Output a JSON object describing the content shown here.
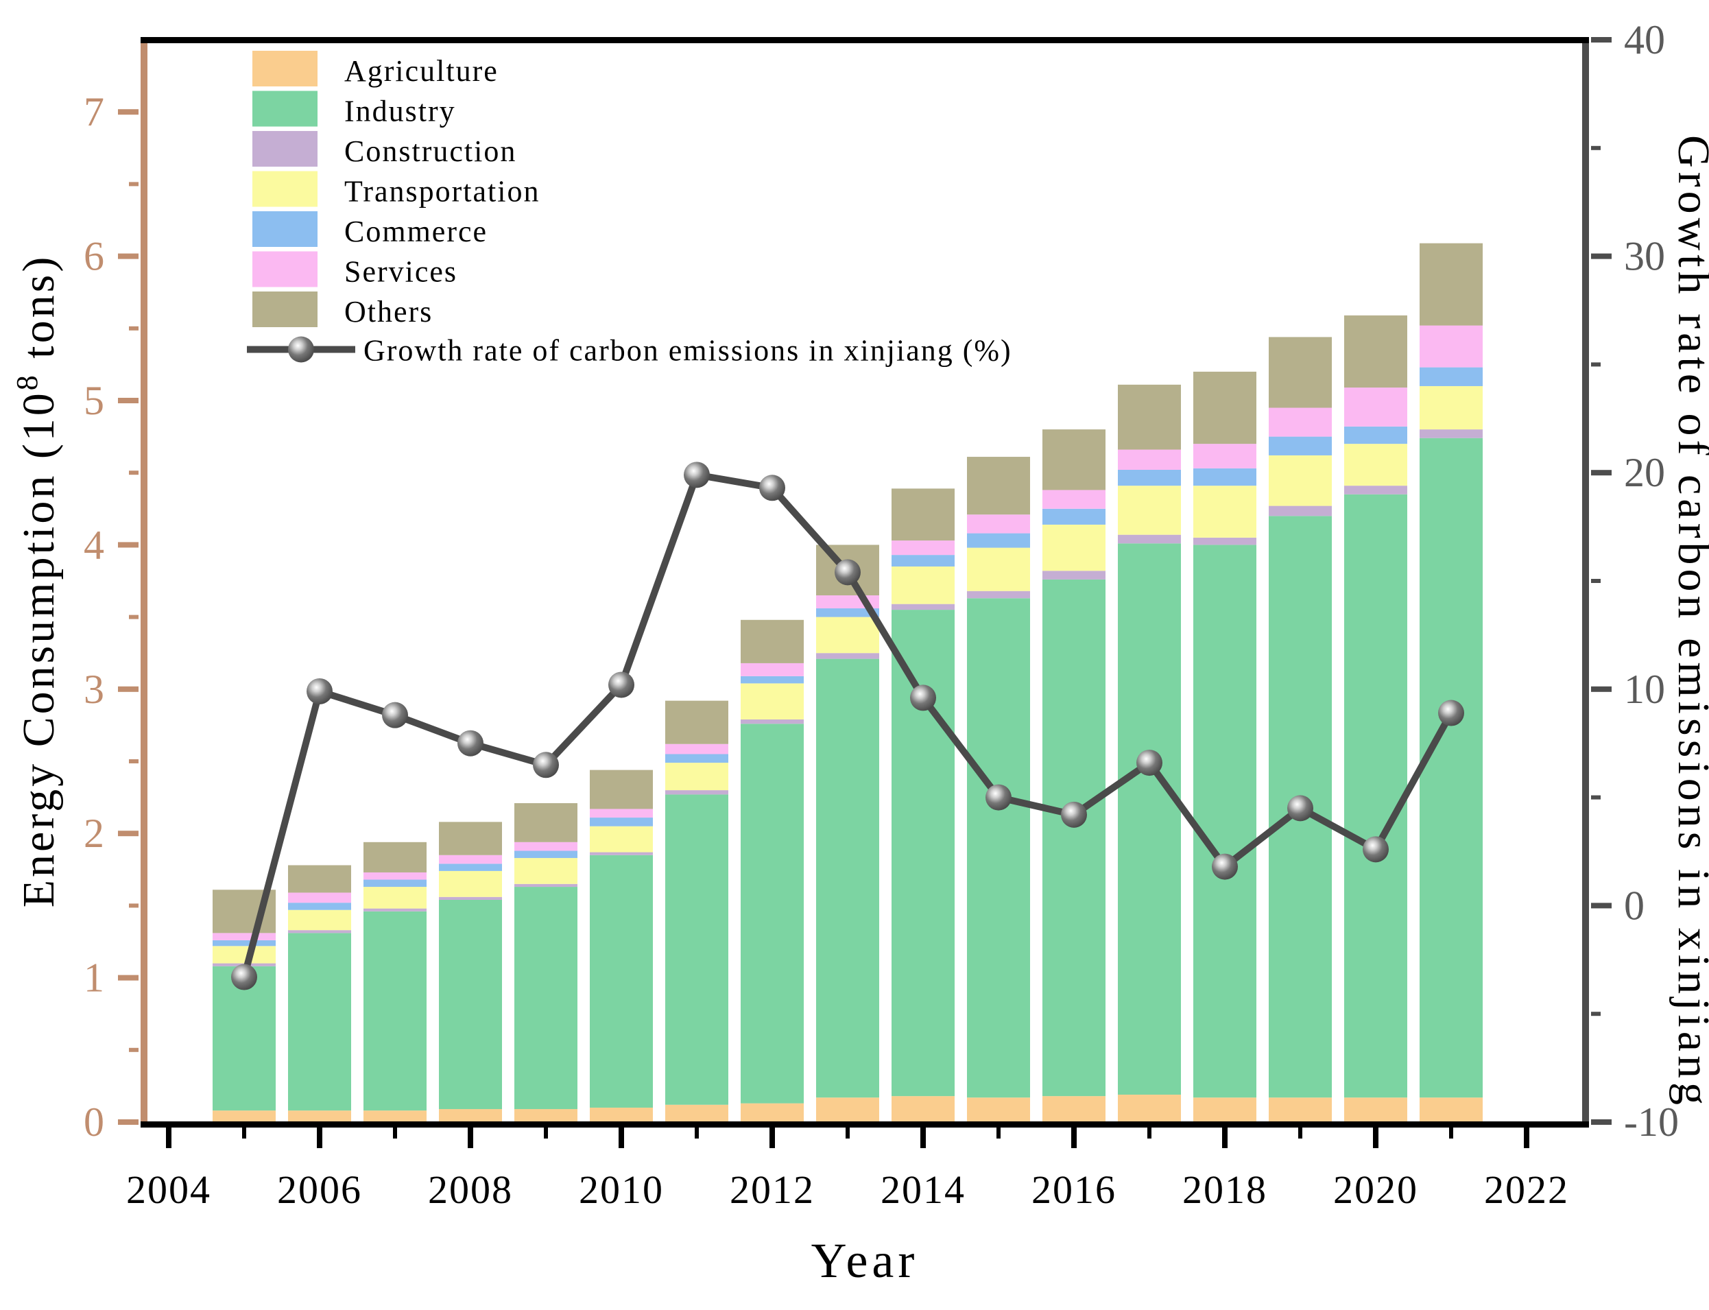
{
  "figure_title": "",
  "chart_data": {
    "type": "bar",
    "subtype": "stacked-bars-with-line",
    "categories": [
      2005,
      2006,
      2007,
      2008,
      2009,
      2010,
      2011,
      2012,
      2013,
      2014,
      2015,
      2016,
      2017,
      2018,
      2019,
      2020,
      2021
    ],
    "series": [
      {
        "name": "Agriculture",
        "color": "#FACD8E",
        "values": [
          0.08,
          0.08,
          0.08,
          0.09,
          0.09,
          0.1,
          0.12,
          0.13,
          0.17,
          0.18,
          0.17,
          0.18,
          0.19,
          0.17,
          0.17,
          0.17,
          0.17
        ]
      },
      {
        "name": "Industry",
        "color": "#7CD4A2",
        "values": [
          1.0,
          1.23,
          1.38,
          1.45,
          1.54,
          1.75,
          2.15,
          2.63,
          3.04,
          3.37,
          3.46,
          3.58,
          3.82,
          3.83,
          4.03,
          4.18,
          4.57
        ]
      },
      {
        "name": "Construction",
        "color": "#C5AED3",
        "values": [
          0.02,
          0.02,
          0.02,
          0.02,
          0.02,
          0.02,
          0.03,
          0.03,
          0.04,
          0.04,
          0.05,
          0.06,
          0.06,
          0.05,
          0.07,
          0.06,
          0.06
        ]
      },
      {
        "name": "Transportation",
        "color": "#FBFA9F",
        "values": [
          0.12,
          0.14,
          0.15,
          0.18,
          0.18,
          0.18,
          0.19,
          0.25,
          0.25,
          0.26,
          0.3,
          0.32,
          0.34,
          0.36,
          0.35,
          0.29,
          0.3
        ]
      },
      {
        "name": "Commerce",
        "color": "#8CBEF0",
        "values": [
          0.04,
          0.05,
          0.05,
          0.05,
          0.05,
          0.06,
          0.06,
          0.05,
          0.06,
          0.08,
          0.1,
          0.11,
          0.11,
          0.12,
          0.13,
          0.12,
          0.13
        ]
      },
      {
        "name": "Services",
        "color": "#FBB9F2",
        "values": [
          0.05,
          0.07,
          0.05,
          0.06,
          0.06,
          0.06,
          0.07,
          0.09,
          0.09,
          0.1,
          0.13,
          0.13,
          0.14,
          0.17,
          0.2,
          0.27,
          0.29
        ]
      },
      {
        "name": "Others",
        "color": "#B5B08C",
        "values": [
          0.3,
          0.19,
          0.21,
          0.23,
          0.27,
          0.27,
          0.3,
          0.3,
          0.35,
          0.36,
          0.4,
          0.42,
          0.45,
          0.5,
          0.49,
          0.5,
          0.57
        ]
      }
    ],
    "line_series": {
      "name": "Growth rate of carbon emissions in xinjiang (%)",
      "color": "#4A4A4A",
      "values": [
        -3.3,
        9.9,
        8.8,
        7.5,
        6.5,
        10.2,
        19.9,
        19.3,
        15.4,
        9.6,
        5.0,
        4.2,
        6.6,
        1.8,
        4.5,
        2.6,
        8.9
      ]
    },
    "xlabel": "Year",
    "ylabel_left_pre": "Energy Consumption (10",
    "ylabel_left_sup": "8",
    "ylabel_left_post": " tons)",
    "ylabel_right": "Growth rate of carbon emissions in xinjiang",
    "x_ticks": [
      2004,
      2006,
      2008,
      2010,
      2012,
      2014,
      2016,
      2018,
      2020,
      2022
    ],
    "x_minor_ticks": [
      2005,
      2007,
      2009,
      2011,
      2013,
      2015,
      2017,
      2019,
      2021
    ],
    "left_ticks": [
      0,
      1,
      2,
      3,
      4,
      5,
      6,
      7
    ],
    "left_range": [
      0,
      7.5
    ],
    "right_ticks": [
      -10,
      0,
      10,
      20,
      30,
      40
    ],
    "right_minor_step": 5,
    "right_range": [
      -10,
      40
    ],
    "x_range": [
      2004,
      2022
    ],
    "grid": "off",
    "legend_position": "upper-left-inside",
    "colors": {
      "left_axis": "#C08D6E",
      "bottom_axis": "#000000",
      "top_axis": "#000000",
      "right_axis": "#4D4D4D",
      "right_tick_label": "#5A5A5A",
      "x_tick_label": "#000000",
      "legend_text": "#000000",
      "line": "#4A4A4A"
    }
  },
  "legend": {
    "items": [
      {
        "label": "Agriculture"
      },
      {
        "label": "Industry"
      },
      {
        "label": "Construction"
      },
      {
        "label": "Transportation"
      },
      {
        "label": "Commerce"
      },
      {
        "label": "Services"
      },
      {
        "label": "Others"
      }
    ],
    "line_item_label": "Growth rate of carbon emissions in xinjiang (%)"
  }
}
